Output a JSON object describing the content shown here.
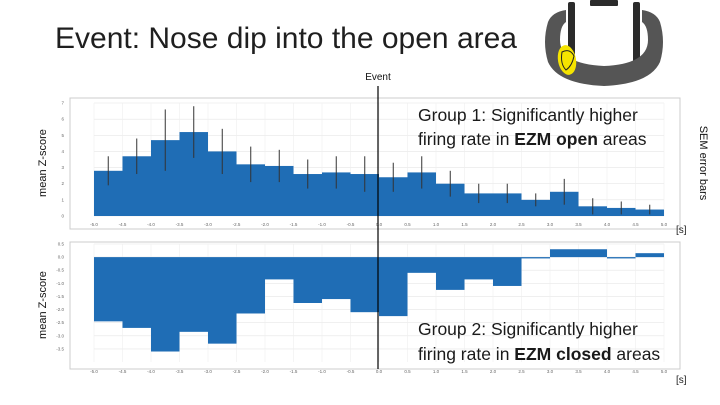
{
  "slide": {
    "title": "Event: Nose dip into the open area",
    "side_note": "SEM error bars",
    "event_label": "Event",
    "unit_label": "[s]"
  },
  "colors": {
    "bar": "#1f6db5",
    "error_bar": "#333333",
    "event_line": "#000000",
    "frame": "#cccccc",
    "maze_body": "#555555",
    "maze_dark": "#2b2b2b",
    "highlight": "#f5e400"
  },
  "icons": {
    "maze": "elevated-zero-maze-icon"
  },
  "chart_data": [
    {
      "type": "bar",
      "panel": "top",
      "ylabel": "mean Z-score",
      "xlim": [
        -5.0,
        5.0
      ],
      "ylim": [
        0,
        7
      ],
      "bin_width": 0.5,
      "bins": [
        -5.0,
        -4.5,
        -4.0,
        -3.5,
        -3.0,
        -2.5,
        -2.0,
        -1.5,
        -1.0,
        -0.5,
        0.0,
        0.5,
        1.0,
        1.5,
        2.0,
        2.5,
        3.0,
        3.5,
        4.0,
        4.5
      ],
      "values": [
        2.8,
        3.7,
        4.7,
        5.2,
        4.0,
        3.2,
        3.1,
        2.6,
        2.7,
        2.6,
        2.4,
        2.7,
        2.0,
        1.4,
        1.4,
        1.0,
        1.5,
        0.6,
        0.5,
        0.4
      ],
      "errors": [
        0.9,
        1.1,
        1.9,
        1.6,
        1.4,
        1.1,
        1.0,
        0.9,
        1.0,
        1.1,
        0.9,
        1.0,
        0.8,
        0.6,
        0.6,
        0.4,
        0.8,
        0.5,
        0.4,
        0.3
      ],
      "x_ticks": [
        "-5.0",
        "-4.5",
        "-4.0",
        "-3.5",
        "-3.0",
        "-2.5",
        "-2.0",
        "-1.5",
        "-1.0",
        "-0.5",
        "0.0",
        "0.5",
        "1.0",
        "1.5",
        "2.0",
        "2.5",
        "3.0",
        "3.5",
        "4.0",
        "4.5",
        "5.0"
      ],
      "y_ticks": [
        "0",
        "1",
        "2",
        "3",
        "4",
        "5",
        "6",
        "7"
      ],
      "grid": true,
      "annotation": {
        "line1": "Group 1: Significantly higher",
        "line2_pre": "firing rate in ",
        "line2_bold": "EZM open",
        "line2_post": " areas"
      }
    },
    {
      "type": "bar",
      "panel": "bottom",
      "ylabel": "mean Z-score",
      "xlim": [
        -5.0,
        5.0
      ],
      "ylim": [
        -4.0,
        0.5
      ],
      "bin_width": 0.5,
      "bins": [
        -5.0,
        -4.5,
        -4.0,
        -3.5,
        -3.0,
        -2.5,
        -2.0,
        -1.5,
        -1.0,
        -0.5,
        0.0,
        0.5,
        1.0,
        1.5,
        2.0,
        2.5,
        3.0,
        3.5,
        4.0,
        4.5
      ],
      "values": [
        -2.45,
        -2.7,
        -3.6,
        -2.85,
        -3.3,
        -2.15,
        -0.85,
        -1.75,
        -1.6,
        -2.1,
        -2.25,
        -0.6,
        -1.25,
        -0.85,
        -1.1,
        -0.05,
        0.3,
        0.3,
        -0.05,
        0.15
      ],
      "x_ticks": [
        "-5.0",
        "-4.5",
        "-4.0",
        "-3.5",
        "-3.0",
        "-2.5",
        "-2.0",
        "-1.5",
        "-1.0",
        "-0.5",
        "0.0",
        "0.5",
        "1.0",
        "1.5",
        "2.0",
        "2.5",
        "3.0",
        "3.5",
        "4.0",
        "4.5",
        "5.0"
      ],
      "y_ticks": [
        "0.5",
        "0.0",
        "-0.5",
        "-1.0",
        "-1.5",
        "-2.0",
        "-2.5",
        "-3.0",
        "-3.5"
      ],
      "grid": true,
      "annotation": {
        "line1": "Group 2: Significantly higher",
        "line2_pre": "firing rate in ",
        "line2_bold": "EZM closed",
        "line2_post": " areas"
      }
    }
  ]
}
